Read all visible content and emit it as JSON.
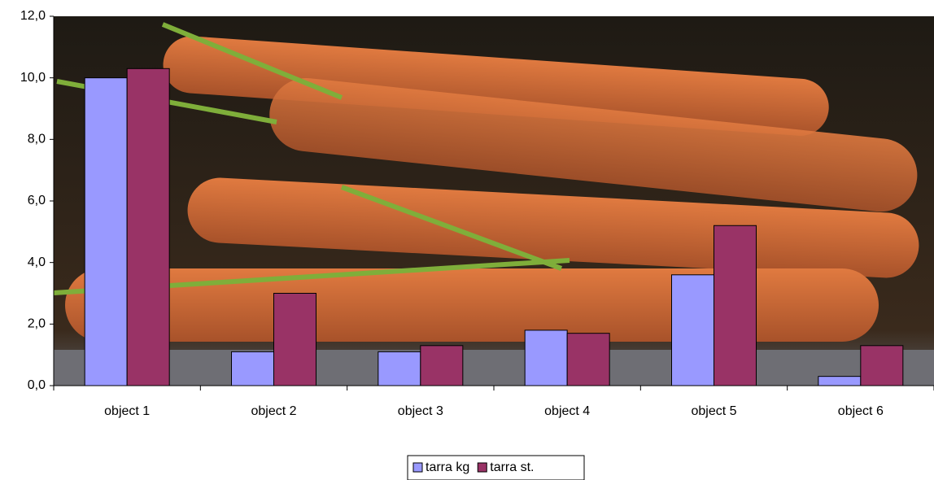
{
  "chart_data": {
    "type": "bar",
    "categories": [
      "object 1",
      "object 2",
      "object 3",
      "object 4",
      "object 5",
      "object 6"
    ],
    "series": [
      {
        "name": "tarra kg",
        "color": "#9999ff",
        "values": [
          10.0,
          1.1,
          1.1,
          1.8,
          3.6,
          0.3
        ]
      },
      {
        "name": "tarra st.",
        "color": "#993366",
        "values": [
          10.3,
          3.0,
          1.3,
          1.7,
          5.2,
          1.3
        ]
      }
    ],
    "ylim": [
      0,
      12
    ],
    "yticks": [
      {
        "value": 0,
        "label": "0,0"
      },
      {
        "value": 2,
        "label": "2,0"
      },
      {
        "value": 4,
        "label": "4,0"
      },
      {
        "value": 6,
        "label": "6,0"
      },
      {
        "value": 8,
        "label": "8,0"
      },
      {
        "value": 10,
        "label": "10,0"
      },
      {
        "value": 12,
        "label": "12,0"
      }
    ],
    "legend": "bottom"
  }
}
